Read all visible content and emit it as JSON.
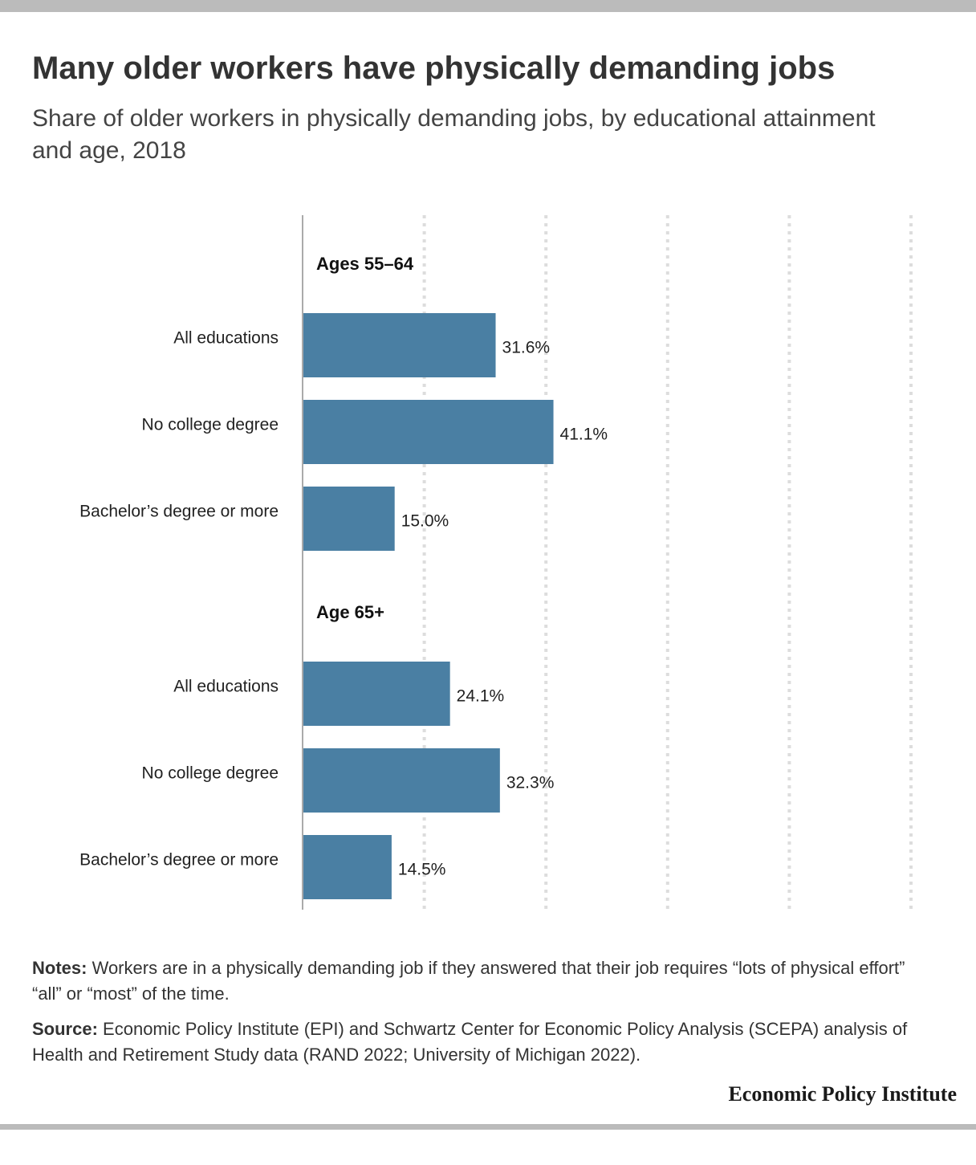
{
  "title": "Many older workers have physically demanding jobs",
  "subtitle": "Share of older workers in physically demanding jobs, by educational attainment and age, 2018",
  "notes_label": "Notes:",
  "notes_text": "Workers are in a physically demanding job if they answered that their job requires “lots of physical effort” “all” or “most” of the time.",
  "source_label": "Source:",
  "source_text": "Economic Policy Institute (EPI) and Schwartz Center for Economic Policy Analysis (SCEPA) analysis of Health and Retirement Study data (RAND 2022; University of Michigan 2022).",
  "brand": "Economic Policy Institute",
  "colors": {
    "bar": "#4a7fa3",
    "grid": "#dddddd",
    "axis": "#aaaaaa"
  },
  "chart_data": {
    "type": "bar",
    "orientation": "horizontal",
    "xlim": [
      0,
      100
    ],
    "grid": true,
    "groups": [
      {
        "name": "Ages 55–64",
        "categories": [
          "All educations",
          "No college degree",
          "Bachelor’s degree or more"
        ],
        "values": [
          31.6,
          41.1,
          15.0
        ],
        "labels": [
          "31.6%",
          "41.1%",
          "15.0%"
        ]
      },
      {
        "name": "Age 65+",
        "categories": [
          "All educations",
          "No college degree",
          "Bachelor’s degree or more"
        ],
        "values": [
          24.1,
          32.3,
          14.5
        ],
        "labels": [
          "24.1%",
          "32.3%",
          "14.5%"
        ]
      }
    ]
  }
}
